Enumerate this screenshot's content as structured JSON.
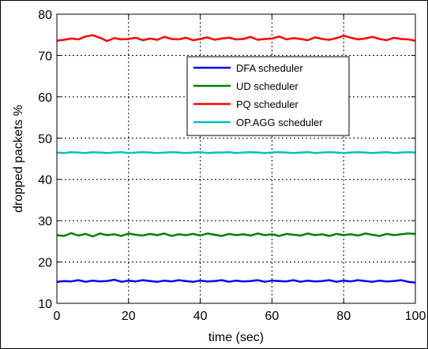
{
  "chart_data": {
    "type": "line",
    "xlabel": "time (sec)",
    "ylabel": "dropped packets %",
    "xlim": [
      0,
      100
    ],
    "ylim": [
      10,
      80
    ],
    "xticks": [
      0,
      20,
      40,
      60,
      80,
      100
    ],
    "yticks": [
      10,
      20,
      30,
      40,
      50,
      60,
      70,
      80
    ],
    "grid": true,
    "legend_position": "top-right",
    "x": [
      0,
      2,
      4,
      6,
      8,
      10,
      12,
      14,
      16,
      18,
      20,
      22,
      24,
      26,
      28,
      30,
      32,
      34,
      36,
      38,
      40,
      42,
      44,
      46,
      48,
      50,
      52,
      54,
      56,
      58,
      60,
      62,
      64,
      66,
      68,
      70,
      72,
      74,
      76,
      78,
      80,
      82,
      84,
      86,
      88,
      90,
      92,
      94,
      96,
      98,
      100
    ],
    "series": [
      {
        "name": "DFA scheduler",
        "color": "#0000ff",
        "values": [
          15.2,
          15.4,
          15.3,
          15.6,
          15.2,
          15.5,
          15.3,
          15.4,
          15.7,
          15.2,
          15.5,
          15.3,
          15.6,
          15.4,
          15.2,
          15.5,
          15.3,
          15.6,
          15.4,
          15.2,
          15.5,
          15.3,
          15.4,
          15.6,
          15.2,
          15.5,
          15.3,
          15.4,
          15.6,
          15.2,
          15.5,
          15.4,
          15.3,
          15.6,
          15.2,
          15.5,
          15.3,
          15.4,
          15.6,
          15.2,
          15.5,
          15.3,
          15.6,
          15.4,
          15.2,
          15.5,
          15.3,
          15.4,
          15.6,
          15.2,
          15.0
        ]
      },
      {
        "name": "UD scheduler",
        "color": "#008000",
        "values": [
          26.5,
          26.3,
          27.0,
          26.4,
          26.8,
          26.2,
          26.9,
          26.5,
          26.7,
          26.3,
          26.9,
          26.6,
          26.4,
          26.8,
          26.5,
          26.9,
          26.3,
          26.7,
          26.5,
          26.8,
          26.4,
          26.9,
          26.6,
          26.3,
          26.8,
          26.5,
          26.7,
          26.4,
          26.9,
          26.5,
          26.7,
          26.3,
          26.8,
          26.6,
          26.4,
          26.9,
          26.5,
          26.7,
          26.3,
          26.8,
          26.5,
          26.7,
          26.4,
          26.9,
          26.6,
          26.3,
          26.8,
          26.5,
          26.7,
          26.9,
          26.8
        ]
      },
      {
        "name": "PQ scheduler",
        "color": "#ff0000",
        "values": [
          73.6,
          73.8,
          74.1,
          73.9,
          74.6,
          74.9,
          74.3,
          73.5,
          74.2,
          73.9,
          74.0,
          74.3,
          73.7,
          74.1,
          73.8,
          74.5,
          74.0,
          73.9,
          74.3,
          73.7,
          74.0,
          74.4,
          73.8,
          74.1,
          74.3,
          73.9,
          74.0,
          74.5,
          73.8,
          74.0,
          74.1,
          74.6,
          73.9,
          74.2,
          74.0,
          73.7,
          74.4,
          74.0,
          73.8,
          74.2,
          74.8,
          74.3,
          73.9,
          74.1,
          74.5,
          74.0,
          73.7,
          74.3,
          74.0,
          73.9,
          73.6
        ]
      },
      {
        "name": "OP.AGG scheduler",
        "color": "#00c0c0",
        "values": [
          46.5,
          46.4,
          46.6,
          46.5,
          46.4,
          46.6,
          46.5,
          46.4,
          46.5,
          46.6,
          46.4,
          46.5,
          46.6,
          46.5,
          46.4,
          46.5,
          46.6,
          46.5,
          46.4,
          46.5,
          46.6,
          46.4,
          46.5,
          46.5,
          46.6,
          46.4,
          46.5,
          46.6,
          46.5,
          46.4,
          46.5,
          46.6,
          46.5,
          46.4,
          46.5,
          46.6,
          46.4,
          46.5,
          46.6,
          46.5,
          46.4,
          46.5,
          46.6,
          46.5,
          46.4,
          46.5,
          46.6,
          46.4,
          46.5,
          46.6,
          46.5
        ]
      }
    ]
  }
}
